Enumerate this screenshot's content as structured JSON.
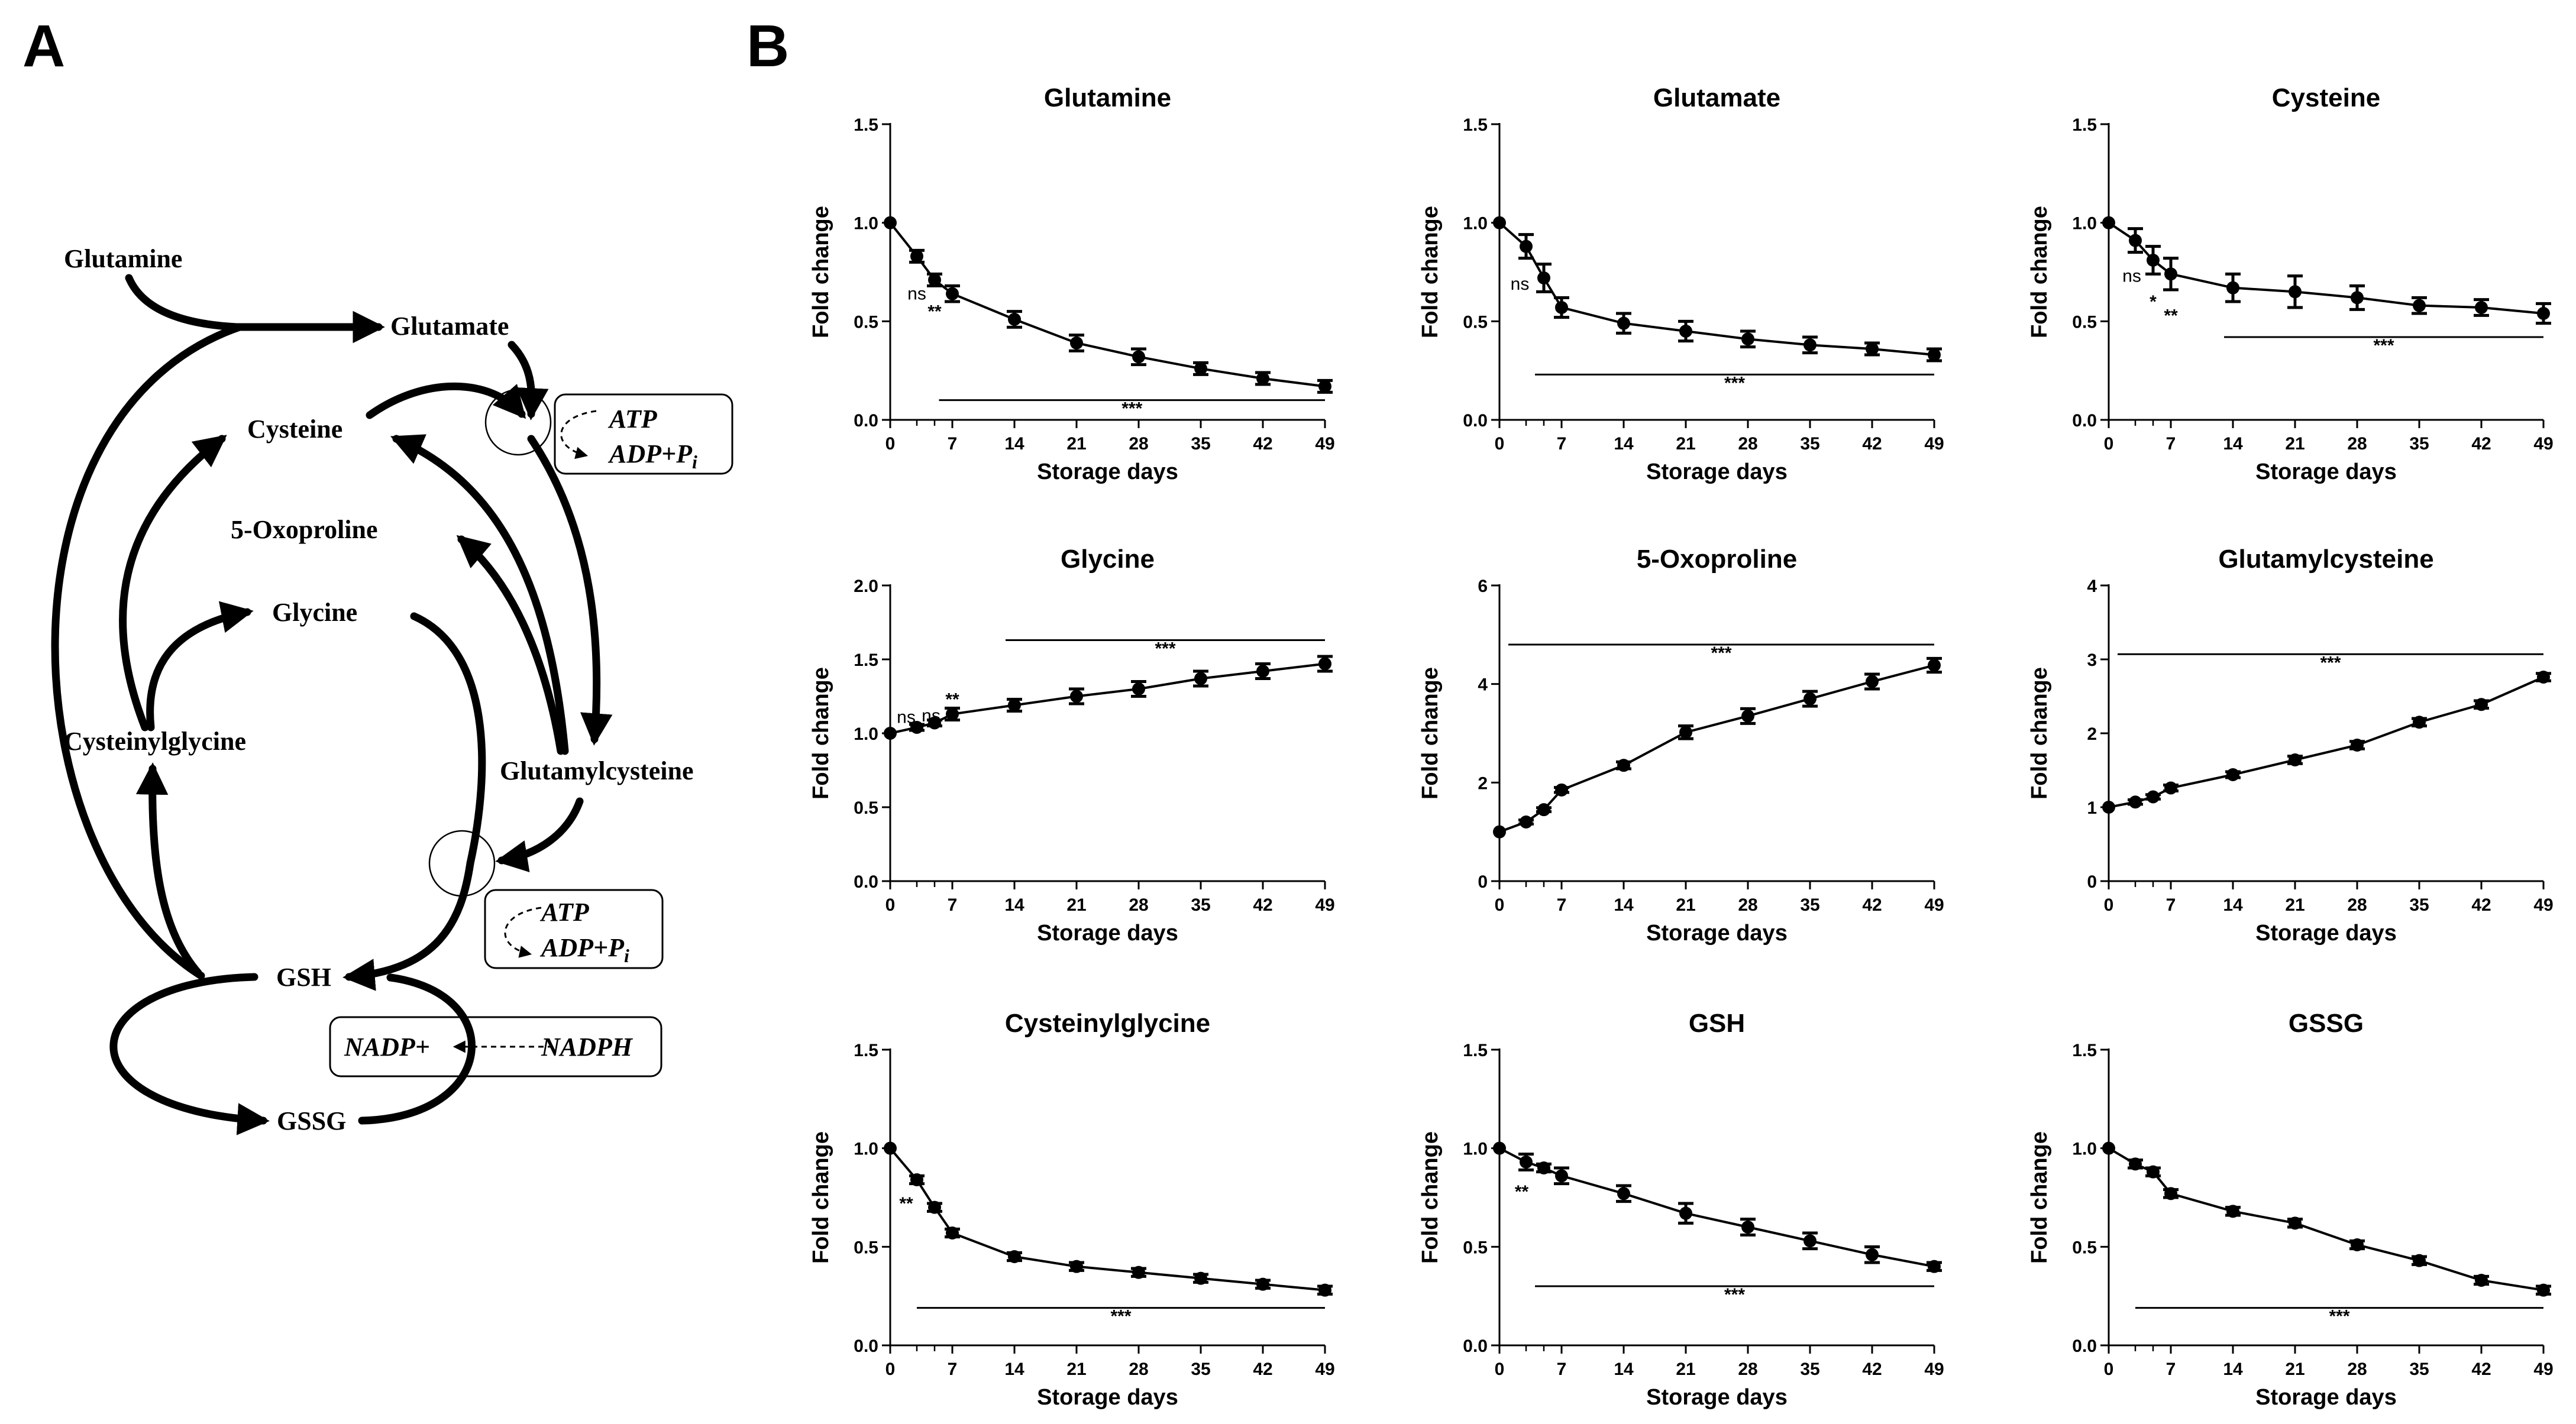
{
  "panels": {
    "a": "A",
    "b": "B"
  },
  "pathway": {
    "nodes": {
      "glutamine": "Glutamine",
      "glutamate": "Glutamate",
      "cysteine": "Cysteine",
      "oxoproline": "5-Oxoproline",
      "glycine": "Glycine",
      "cysteinylglycine": "Cysteinylglycine",
      "glutamylcysteine": "Glutamylcysteine",
      "gsh": "GSH",
      "gssg": "GSSG"
    },
    "boxes": {
      "atp1": "ATP",
      "adp1": "ADP+P",
      "sub1": "i",
      "atp2": "ATP",
      "adp2": "ADP+P",
      "sub2": "i",
      "nadp": "NADP+",
      "nadph": "NADPH"
    }
  },
  "chart_data": [
    {
      "type": "line",
      "title": "Glutamine",
      "xlabel": "Storage days",
      "ylabel": "Fold change",
      "x": [
        0,
        3,
        5,
        7,
        14,
        21,
        28,
        35,
        42,
        49
      ],
      "y": [
        1.0,
        0.83,
        0.71,
        0.64,
        0.51,
        0.39,
        0.32,
        0.26,
        0.21,
        0.17
      ],
      "err": [
        0,
        0.03,
        0.03,
        0.04,
        0.04,
        0.04,
        0.04,
        0.03,
        0.03,
        0.03
      ],
      "xticks": [
        0,
        7,
        14,
        21,
        28,
        35,
        42,
        49
      ],
      "ylim": [
        0,
        1.5
      ],
      "yticks": [
        "0.0",
        "0.5",
        "1.0",
        "1.5"
      ],
      "annotations": [
        {
          "x": 3,
          "y": 0.64,
          "text": "ns"
        },
        {
          "x": 5,
          "y": 0.55,
          "text": "**"
        }
      ],
      "sig_bar": {
        "x_from": 5.5,
        "x_to": 49,
        "y": 0.1,
        "label": "***"
      }
    },
    {
      "type": "line",
      "title": "Glutamate",
      "xlabel": "Storage days",
      "ylabel": "Fold change",
      "x": [
        0,
        3,
        5,
        7,
        14,
        21,
        28,
        35,
        42,
        49
      ],
      "y": [
        1.0,
        0.88,
        0.72,
        0.57,
        0.49,
        0.45,
        0.41,
        0.38,
        0.36,
        0.33
      ],
      "err": [
        0,
        0.06,
        0.07,
        0.05,
        0.05,
        0.05,
        0.04,
        0.04,
        0.03,
        0.03
      ],
      "xticks": [
        0,
        7,
        14,
        21,
        28,
        35,
        42,
        49
      ],
      "ylim": [
        0,
        1.5
      ],
      "yticks": [
        "0.0",
        "0.5",
        "1.0",
        "1.5"
      ],
      "annotations": [
        {
          "x": 2.3,
          "y": 0.69,
          "text": "ns"
        }
      ],
      "sig_bar": {
        "x_from": 4,
        "x_to": 49,
        "y": 0.23,
        "label": "***"
      }
    },
    {
      "type": "line",
      "title": "Cysteine",
      "xlabel": "Storage days",
      "ylabel": "Fold change",
      "x": [
        0,
        3,
        5,
        7,
        14,
        21,
        28,
        35,
        42,
        49
      ],
      "y": [
        1.0,
        0.91,
        0.81,
        0.74,
        0.67,
        0.65,
        0.62,
        0.58,
        0.57,
        0.54
      ],
      "err": [
        0,
        0.06,
        0.07,
        0.08,
        0.07,
        0.08,
        0.06,
        0.04,
        0.04,
        0.05
      ],
      "xticks": [
        0,
        7,
        14,
        21,
        28,
        35,
        42,
        49
      ],
      "ylim": [
        0,
        1.5
      ],
      "yticks": [
        "0.0",
        "0.5",
        "1.0",
        "1.5"
      ],
      "annotations": [
        {
          "x": 2.6,
          "y": 0.73,
          "text": "ns"
        },
        {
          "x": 5,
          "y": 0.6,
          "text": "*"
        },
        {
          "x": 7,
          "y": 0.53,
          "text": "**"
        }
      ],
      "sig_bar": {
        "x_from": 13,
        "x_to": 49,
        "y": 0.42,
        "label": "***"
      }
    },
    {
      "type": "line",
      "title": "Glycine",
      "xlabel": "Storage days",
      "ylabel": "Fold change",
      "x": [
        0,
        3,
        5,
        7,
        14,
        21,
        28,
        35,
        42,
        49
      ],
      "y": [
        1.0,
        1.04,
        1.07,
        1.13,
        1.19,
        1.25,
        1.3,
        1.37,
        1.42,
        1.47
      ],
      "err": [
        0,
        0.02,
        0.02,
        0.04,
        0.04,
        0.05,
        0.05,
        0.05,
        0.05,
        0.05
      ],
      "xticks": [
        0,
        7,
        14,
        21,
        28,
        35,
        42,
        49
      ],
      "ylim": [
        0,
        2.0
      ],
      "yticks": [
        "0.0",
        "0.5",
        "1.0",
        "1.5",
        "2.0"
      ],
      "annotations": [
        {
          "x": 1.8,
          "y": 1.11,
          "text": "ns"
        },
        {
          "x": 4.6,
          "y": 1.12,
          "text": "ns"
        },
        {
          "x": 7,
          "y": 1.23,
          "text": "**"
        }
      ],
      "sig_bar": {
        "x_from": 13,
        "x_to": 49,
        "y": 1.63,
        "label": "***"
      }
    },
    {
      "type": "line",
      "title": "5-Oxoproline",
      "xlabel": "Storage days",
      "ylabel": "Fold change",
      "x": [
        0,
        3,
        5,
        7,
        14,
        21,
        28,
        35,
        42,
        49
      ],
      "y": [
        1.0,
        1.2,
        1.45,
        1.85,
        2.35,
        3.02,
        3.35,
        3.7,
        4.05,
        4.38
      ],
      "err": [
        0,
        0.04,
        0.04,
        0.05,
        0.07,
        0.13,
        0.15,
        0.15,
        0.15,
        0.14
      ],
      "xticks": [
        0,
        7,
        14,
        21,
        28,
        35,
        42,
        49
      ],
      "ylim": [
        0,
        6
      ],
      "yticks": [
        "0",
        "2",
        "4",
        "6"
      ],
      "annotations": [],
      "sig_bar": {
        "x_from": 1,
        "x_to": 49,
        "y": 4.8,
        "label": "***"
      }
    },
    {
      "type": "line",
      "title": "Glutamylcysteine",
      "xlabel": "Storage days",
      "ylabel": "Fold change",
      "x": [
        0,
        3,
        5,
        7,
        14,
        21,
        28,
        35,
        42,
        49
      ],
      "y": [
        1.0,
        1.07,
        1.14,
        1.26,
        1.44,
        1.64,
        1.84,
        2.15,
        2.39,
        2.76
      ],
      "err": [
        0,
        0.03,
        0.03,
        0.04,
        0.04,
        0.05,
        0.05,
        0.05,
        0.05,
        0.05
      ],
      "xticks": [
        0,
        7,
        14,
        21,
        28,
        35,
        42,
        49
      ],
      "ylim": [
        0,
        4
      ],
      "yticks": [
        "0",
        "1",
        "2",
        "3",
        "4"
      ],
      "annotations": [],
      "sig_bar": {
        "x_from": 1,
        "x_to": 49,
        "y": 3.07,
        "label": "***"
      }
    },
    {
      "type": "line",
      "title": "Cysteinylglycine",
      "xlabel": "Storage days",
      "ylabel": "Fold change",
      "x": [
        0,
        3,
        5,
        7,
        14,
        21,
        28,
        35,
        42,
        49
      ],
      "y": [
        1.0,
        0.84,
        0.7,
        0.57,
        0.45,
        0.4,
        0.37,
        0.34,
        0.31,
        0.28
      ],
      "err": [
        0,
        0.02,
        0.02,
        0.02,
        0.02,
        0.02,
        0.02,
        0.02,
        0.02,
        0.02
      ],
      "xticks": [
        0,
        7,
        14,
        21,
        28,
        35,
        42,
        49
      ],
      "ylim": [
        0,
        1.5
      ],
      "yticks": [
        "0.0",
        "0.5",
        "1.0",
        "1.5"
      ],
      "annotations": [
        {
          "x": 1.8,
          "y": 0.72,
          "text": "**"
        }
      ],
      "sig_bar": {
        "x_from": 3,
        "x_to": 49,
        "y": 0.19,
        "label": "***"
      }
    },
    {
      "type": "line",
      "title": "GSH",
      "xlabel": "Storage days",
      "ylabel": "Fold change",
      "x": [
        0,
        3,
        5,
        7,
        14,
        21,
        28,
        35,
        42,
        49
      ],
      "y": [
        1.0,
        0.93,
        0.9,
        0.86,
        0.77,
        0.67,
        0.6,
        0.53,
        0.46,
        0.4
      ],
      "err": [
        0,
        0.04,
        0.02,
        0.04,
        0.04,
        0.05,
        0.04,
        0.04,
        0.04,
        0.02
      ],
      "xticks": [
        0,
        7,
        14,
        21,
        28,
        35,
        42,
        49
      ],
      "ylim": [
        0,
        1.5
      ],
      "yticks": [
        "0.0",
        "0.5",
        "1.0",
        "1.5"
      ],
      "annotations": [
        {
          "x": 2.5,
          "y": 0.78,
          "text": "**"
        }
      ],
      "sig_bar": {
        "x_from": 4,
        "x_to": 49,
        "y": 0.3,
        "label": "***"
      }
    },
    {
      "type": "line",
      "title": "GSSG",
      "xlabel": "Storage days",
      "ylabel": "Fold change",
      "x": [
        0,
        3,
        5,
        7,
        14,
        21,
        28,
        35,
        42,
        49
      ],
      "y": [
        1.0,
        0.92,
        0.88,
        0.77,
        0.68,
        0.62,
        0.51,
        0.43,
        0.33,
        0.28
      ],
      "err": [
        0,
        0.02,
        0.02,
        0.02,
        0.02,
        0.02,
        0.02,
        0.02,
        0.02,
        0.02
      ],
      "xticks": [
        0,
        7,
        14,
        21,
        28,
        35,
        42,
        49
      ],
      "ylim": [
        0,
        1.5
      ],
      "yticks": [
        "0.0",
        "0.5",
        "1.0",
        "1.5"
      ],
      "annotations": [],
      "sig_bar": {
        "x_from": 3,
        "x_to": 49,
        "y": 0.19,
        "label": "***"
      }
    }
  ]
}
